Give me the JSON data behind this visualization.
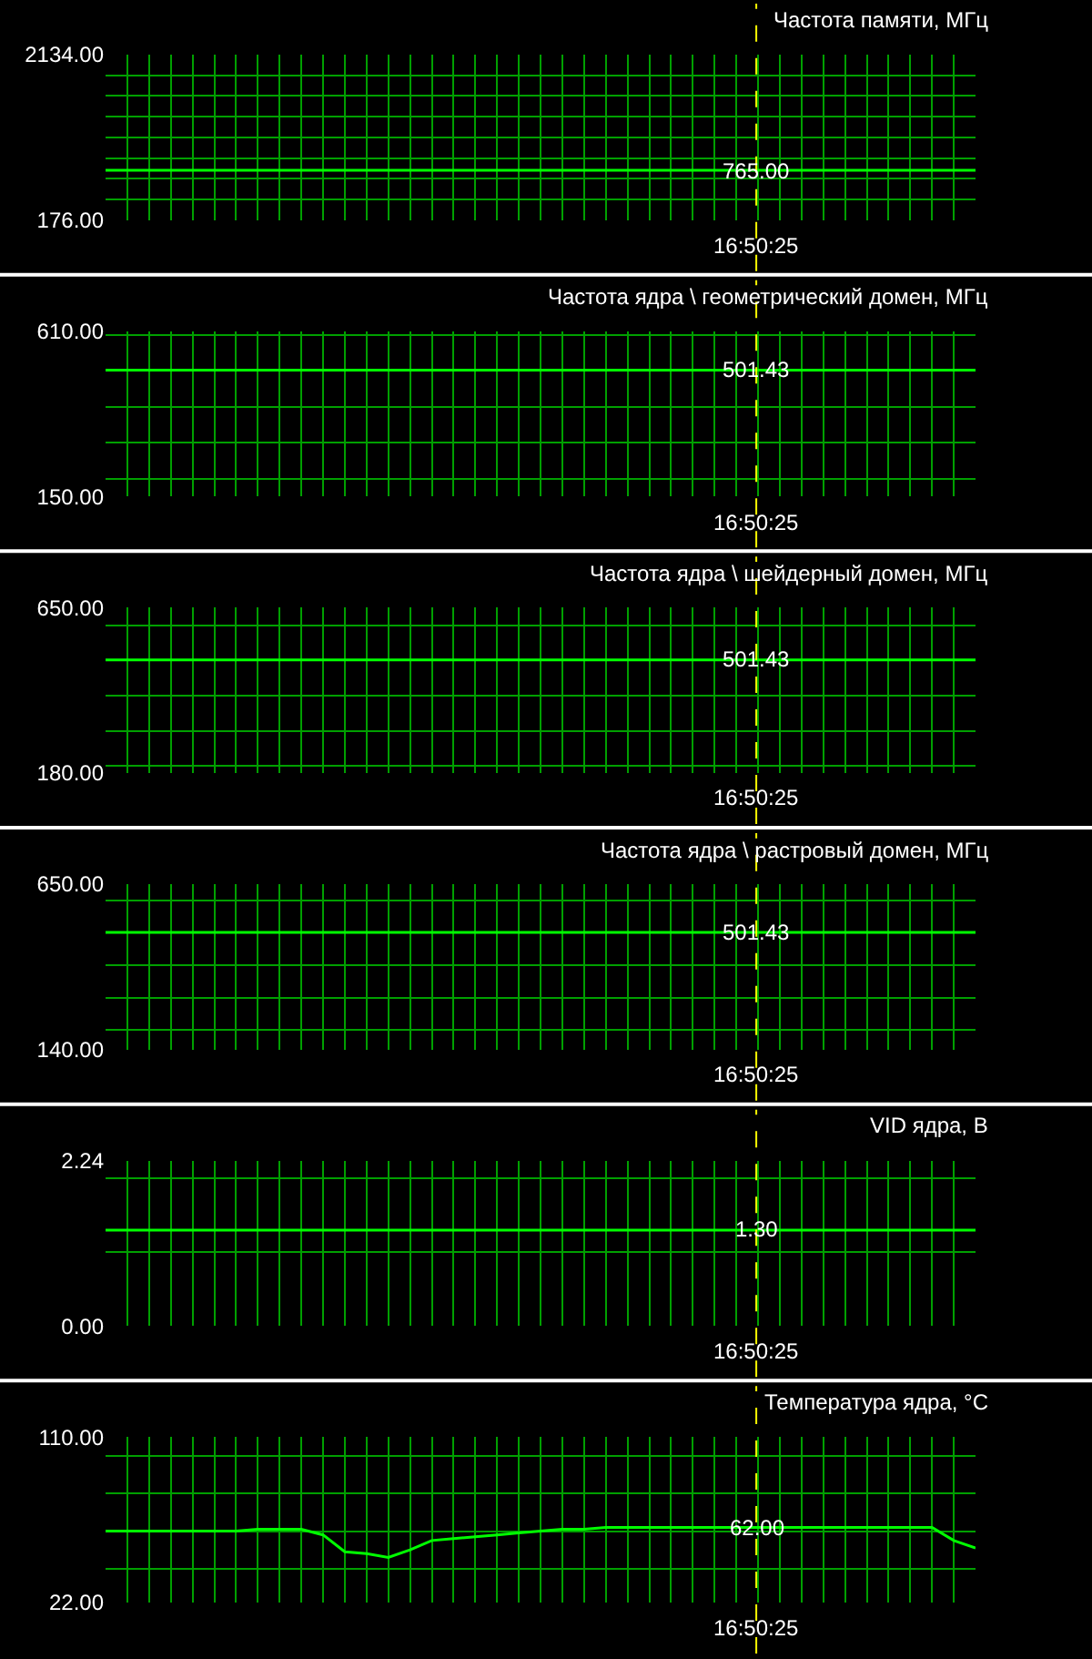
{
  "chart_data": [
    {
      "type": "line",
      "title": "Частота памяти, МГц",
      "categories": [
        null,
        null,
        null,
        null,
        null,
        null,
        null,
        null,
        null,
        null,
        null,
        null,
        null,
        null,
        null,
        null,
        null,
        null,
        null,
        null,
        null,
        null,
        null,
        null,
        null,
        null,
        null,
        null,
        null,
        null,
        null,
        null,
        null,
        null,
        null,
        null,
        null,
        null,
        null,
        null,
        null
      ],
      "series": [
        {
          "color": "#00ff00",
          "values": [
            765,
            765,
            765,
            765,
            765,
            765,
            765,
            765,
            765,
            765,
            765,
            765,
            765,
            765,
            765,
            765,
            765,
            765,
            765,
            765,
            765,
            765,
            765,
            765,
            765,
            765,
            765,
            765,
            765,
            765,
            765,
            765,
            765,
            765,
            765,
            765,
            765,
            765,
            765,
            765,
            765
          ]
        }
      ],
      "ylim": [
        176,
        2134
      ],
      "yticks": [
        {
          "value": 176,
          "label": "176.00"
        },
        {
          "value": 420.75,
          "label": null
        },
        {
          "value": 665.5,
          "label": null
        },
        {
          "value": 910.25,
          "label": null
        },
        {
          "value": 1155,
          "label": null
        },
        {
          "value": 1399.75,
          "label": null
        },
        {
          "value": 1644.5,
          "label": null
        },
        {
          "value": 1889.25,
          "label": null
        },
        {
          "value": 2134,
          "label": "2134.00"
        }
      ],
      "grid": true,
      "tick_labels": "y",
      "annotations": [
        {
          "text": "765.00",
          "y": 765
        },
        "16:50:25"
      ]
    },
    {
      "type": "line",
      "title": "Частота ядра \\ геометрический домен, МГц",
      "categories": [
        null,
        null,
        null,
        null,
        null,
        null,
        null,
        null,
        null,
        null,
        null,
        null,
        null,
        null,
        null,
        null,
        null,
        null,
        null,
        null,
        null,
        null,
        null,
        null,
        null,
        null,
        null,
        null,
        null,
        null,
        null,
        null,
        null,
        null,
        null,
        null,
        null,
        null,
        null,
        null,
        null
      ],
      "series": [
        {
          "color": "#00ff00",
          "values": [
            501.43,
            501.43,
            501.43,
            501.43,
            501.43,
            501.43,
            501.43,
            501.43,
            501.43,
            501.43,
            501.43,
            501.43,
            501.43,
            501.43,
            501.43,
            501.43,
            501.43,
            501.43,
            501.43,
            501.43,
            501.43,
            501.43,
            501.43,
            501.43,
            501.43,
            501.43,
            501.43,
            501.43,
            501.43,
            501.43,
            501.43,
            501.43,
            501.43,
            501.43,
            501.43,
            501.43,
            501.43,
            501.43,
            501.43,
            501.43,
            501.43
          ]
        }
      ],
      "ylim": [
        150,
        610
      ],
      "yticks": [
        {
          "value": 150,
          "label": "150.00"
        },
        {
          "value": 200,
          "label": null
        },
        {
          "value": 300,
          "label": null
        },
        {
          "value": 400,
          "label": null
        },
        {
          "value": 600,
          "label": null
        },
        {
          "value": 610,
          "label": "610.00"
        }
      ],
      "grid": true,
      "tick_labels": "y",
      "annotations": [
        {
          "text": "501.43",
          "y": 501.43
        },
        "16:50:25"
      ]
    },
    {
      "type": "line",
      "title": "Частота ядра \\ шейдерный домен, МГц",
      "categories": [
        null,
        null,
        null,
        null,
        null,
        null,
        null,
        null,
        null,
        null,
        null,
        null,
        null,
        null,
        null,
        null,
        null,
        null,
        null,
        null,
        null,
        null,
        null,
        null,
        null,
        null,
        null,
        null,
        null,
        null,
        null,
        null,
        null,
        null,
        null,
        null,
        null,
        null,
        null,
        null,
        null
      ],
      "series": [
        {
          "color": "#00ff00",
          "values": [
            501.43,
            501.43,
            501.43,
            501.43,
            501.43,
            501.43,
            501.43,
            501.43,
            501.43,
            501.43,
            501.43,
            501.43,
            501.43,
            501.43,
            501.43,
            501.43,
            501.43,
            501.43,
            501.43,
            501.43,
            501.43,
            501.43,
            501.43,
            501.43,
            501.43,
            501.43,
            501.43,
            501.43,
            501.43,
            501.43,
            501.43,
            501.43,
            501.43,
            501.43,
            501.43,
            501.43,
            501.43,
            501.43,
            501.43,
            501.43,
            501.43
          ]
        }
      ],
      "ylim": [
        180,
        650
      ],
      "yticks": [
        {
          "value": 180,
          "label": "180.00"
        },
        {
          "value": 200,
          "label": null
        },
        {
          "value": 300,
          "label": null
        },
        {
          "value": 400,
          "label": null
        },
        {
          "value": 600,
          "label": null
        },
        {
          "value": 650,
          "label": "650.00"
        }
      ],
      "grid": true,
      "tick_labels": "y",
      "annotations": [
        {
          "text": "501.43",
          "y": 501.43
        },
        "16:50:25"
      ]
    },
    {
      "type": "line",
      "title": "Частота ядра \\ растровый домен, МГц",
      "categories": [
        null,
        null,
        null,
        null,
        null,
        null,
        null,
        null,
        null,
        null,
        null,
        null,
        null,
        null,
        null,
        null,
        null,
        null,
        null,
        null,
        null,
        null,
        null,
        null,
        null,
        null,
        null,
        null,
        null,
        null,
        null,
        null,
        null,
        null,
        null,
        null,
        null,
        null,
        null,
        null,
        null
      ],
      "series": [
        {
          "color": "#00ff00",
          "values": [
            501.43,
            501.43,
            501.43,
            501.43,
            501.43,
            501.43,
            501.43,
            501.43,
            501.43,
            501.43,
            501.43,
            501.43,
            501.43,
            501.43,
            501.43,
            501.43,
            501.43,
            501.43,
            501.43,
            501.43,
            501.43,
            501.43,
            501.43,
            501.43,
            501.43,
            501.43,
            501.43,
            501.43,
            501.43,
            501.43,
            501.43,
            501.43,
            501.43,
            501.43,
            501.43,
            501.43,
            501.43,
            501.43,
            501.43,
            501.43,
            501.43
          ]
        }
      ],
      "ylim": [
        140,
        650
      ],
      "yticks": [
        {
          "value": 140,
          "label": "140.00"
        },
        {
          "value": 200,
          "label": null
        },
        {
          "value": 300,
          "label": null
        },
        {
          "value": 400,
          "label": null
        },
        {
          "value": 600,
          "label": null
        },
        {
          "value": 650,
          "label": "650.00"
        }
      ],
      "grid": true,
      "tick_labels": "y",
      "annotations": [
        {
          "text": "501.43",
          "y": 501.43
        },
        "16:50:25"
      ]
    },
    {
      "type": "line",
      "title": "VID ядра, В",
      "categories": [
        null,
        null,
        null,
        null,
        null,
        null,
        null,
        null,
        null,
        null,
        null,
        null,
        null,
        null,
        null,
        null,
        null,
        null,
        null,
        null,
        null,
        null,
        null,
        null,
        null,
        null,
        null,
        null,
        null,
        null,
        null,
        null,
        null,
        null,
        null,
        null,
        null,
        null,
        null,
        null,
        null
      ],
      "series": [
        {
          "color": "#00ff00",
          "values": [
            1.3,
            1.3,
            1.3,
            1.3,
            1.3,
            1.3,
            1.3,
            1.3,
            1.3,
            1.3,
            1.3,
            1.3,
            1.3,
            1.3,
            1.3,
            1.3,
            1.3,
            1.3,
            1.3,
            1.3,
            1.3,
            1.3,
            1.3,
            1.3,
            1.3,
            1.3,
            1.3,
            1.3,
            1.3,
            1.3,
            1.3,
            1.3,
            1.3,
            1.3,
            1.3,
            1.3,
            1.3,
            1.3,
            1.3,
            1.3,
            1.3
          ]
        }
      ],
      "ylim": [
        0,
        2.24
      ],
      "yticks": [
        {
          "value": 0,
          "label": "0.00"
        },
        {
          "value": 1,
          "label": null
        },
        {
          "value": 2,
          "label": null
        },
        {
          "value": 2.24,
          "label": "2.24"
        }
      ],
      "grid": true,
      "tick_labels": "y",
      "annotations": [
        {
          "text": "1.30",
          "y": 1.3
        },
        "16:50:25"
      ]
    },
    {
      "type": "line",
      "title": "Температура ядра, °C",
      "categories": [
        null,
        null,
        null,
        null,
        null,
        null,
        null,
        null,
        null,
        null,
        null,
        null,
        null,
        null,
        null,
        null,
        null,
        null,
        null,
        null,
        null,
        null,
        null,
        null,
        null,
        null,
        null,
        null,
        null,
        null,
        null,
        null,
        null,
        null,
        null,
        null,
        null,
        null,
        null,
        null,
        null
      ],
      "series": [
        {
          "color": "#00ff00",
          "values": [
            60,
            60,
            60,
            60,
            60,
            60,
            60,
            61,
            61,
            61,
            58,
            49,
            48,
            46,
            50,
            55,
            56,
            57,
            58,
            59,
            60,
            61,
            61,
            62,
            62,
            62,
            62,
            62,
            62,
            62,
            62,
            62,
            62,
            62,
            62,
            62,
            62,
            62,
            62,
            55,
            51
          ]
        }
      ],
      "ylim": [
        22,
        110
      ],
      "yticks": [
        {
          "value": 22,
          "label": "22.00"
        },
        {
          "value": 40,
          "label": null
        },
        {
          "value": 60,
          "label": null
        },
        {
          "value": 80,
          "label": null
        },
        {
          "value": 100,
          "label": null
        },
        {
          "value": 110,
          "label": "110.00"
        }
      ],
      "grid": true,
      "tick_labels": "y",
      "annotations": [
        {
          "text": "62.00",
          "y": 62
        },
        "16:50:25"
      ]
    }
  ]
}
